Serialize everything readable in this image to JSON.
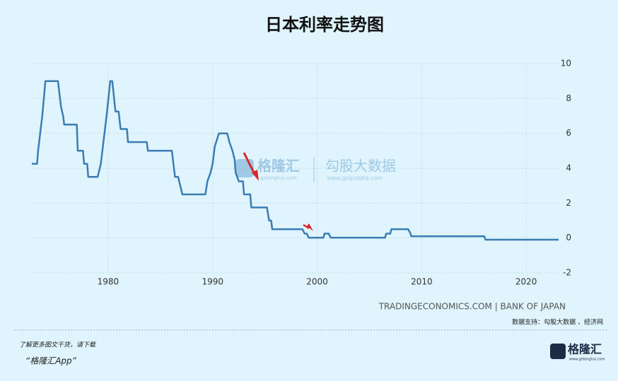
{
  "chart_data": {
    "type": "line",
    "title": "日本利率走势图",
    "x": [
      1972.7,
      1973.2,
      1973.3,
      1973.5,
      1973.7,
      1974.0,
      1975.2,
      1975.3,
      1975.5,
      1975.7,
      1975.8,
      1977.0,
      1977.1,
      1977.6,
      1977.7,
      1978.0,
      1978.1,
      1979.0,
      1979.3,
      1979.5,
      1979.7,
      1979.9,
      1980.2,
      1980.4,
      1980.7,
      1981.0,
      1981.2,
      1981.8,
      1981.9,
      1983.7,
      1983.8,
      1986.1,
      1986.3,
      1986.4,
      1986.7,
      1986.9,
      1987.1,
      1989.3,
      1989.5,
      1989.8,
      1990.0,
      1990.2,
      1990.6,
      1991.4,
      1991.6,
      1991.9,
      1992.1,
      1992.2,
      1992.5,
      1992.9,
      1993.0,
      1993.6,
      1993.7,
      1995.2,
      1995.4,
      1995.6,
      1995.7,
      1998.6,
      1998.8,
      1999.0,
      1999.2,
      2000.6,
      2000.7,
      2001.1,
      2001.3,
      2006.5,
      2006.6,
      2007.0,
      2007.1,
      2008.7,
      2008.9,
      2009.0,
      2016.0,
      2016.1,
      2023.1
    ],
    "series": [
      {
        "color": "#3b7db3",
        "values": [
          4.25,
          4.25,
          5,
          6,
          7,
          9,
          9,
          8.5,
          7.5,
          7,
          6.5,
          6.5,
          5,
          5,
          4.25,
          4.25,
          3.5,
          3.5,
          4.25,
          5.25,
          6.25,
          7.25,
          9,
          9,
          7.25,
          7.25,
          6.25,
          6.25,
          5.5,
          5.5,
          5,
          5,
          4,
          3.5,
          3.5,
          3,
          2.5,
          2.5,
          3.25,
          3.75,
          4.25,
          5.25,
          6,
          6,
          5.5,
          5,
          4.5,
          3.75,
          3.25,
          3.25,
          2.5,
          2.5,
          1.75,
          1.75,
          1,
          1,
          0.5,
          0.5,
          0.25,
          0.25,
          0.02,
          0.02,
          0.25,
          0.25,
          0.02,
          0.02,
          0.25,
          0.25,
          0.5,
          0.5,
          0.3,
          0.1,
          0.1,
          -0.1,
          -0.1
        ]
      }
    ],
    "xlim": [
      1972.7,
      2023.1
    ],
    "xticks": [
      1980,
      1990,
      2000,
      2010,
      2020
    ],
    "ylim": [
      -2,
      10
    ],
    "yticks": [
      -2,
      0,
      2,
      4,
      6,
      8,
      10
    ],
    "grid": true,
    "source": "TRADINGECONOMICS.COM | BANK OF JAPAN",
    "data_support": "数据支持：勾股大数据 、经济网",
    "watermark": {
      "brand": "格隆汇",
      "brand_url": "gelonghui.com",
      "partner": "勾股大数据",
      "partner_url": "www.gogudata.com"
    },
    "footer": {
      "line1": "了解更多图文干货，请下载",
      "line2": "“格隆汇App”"
    },
    "logo": {
      "name": "格隆汇",
      "url": "www.gelonghui.com"
    }
  }
}
